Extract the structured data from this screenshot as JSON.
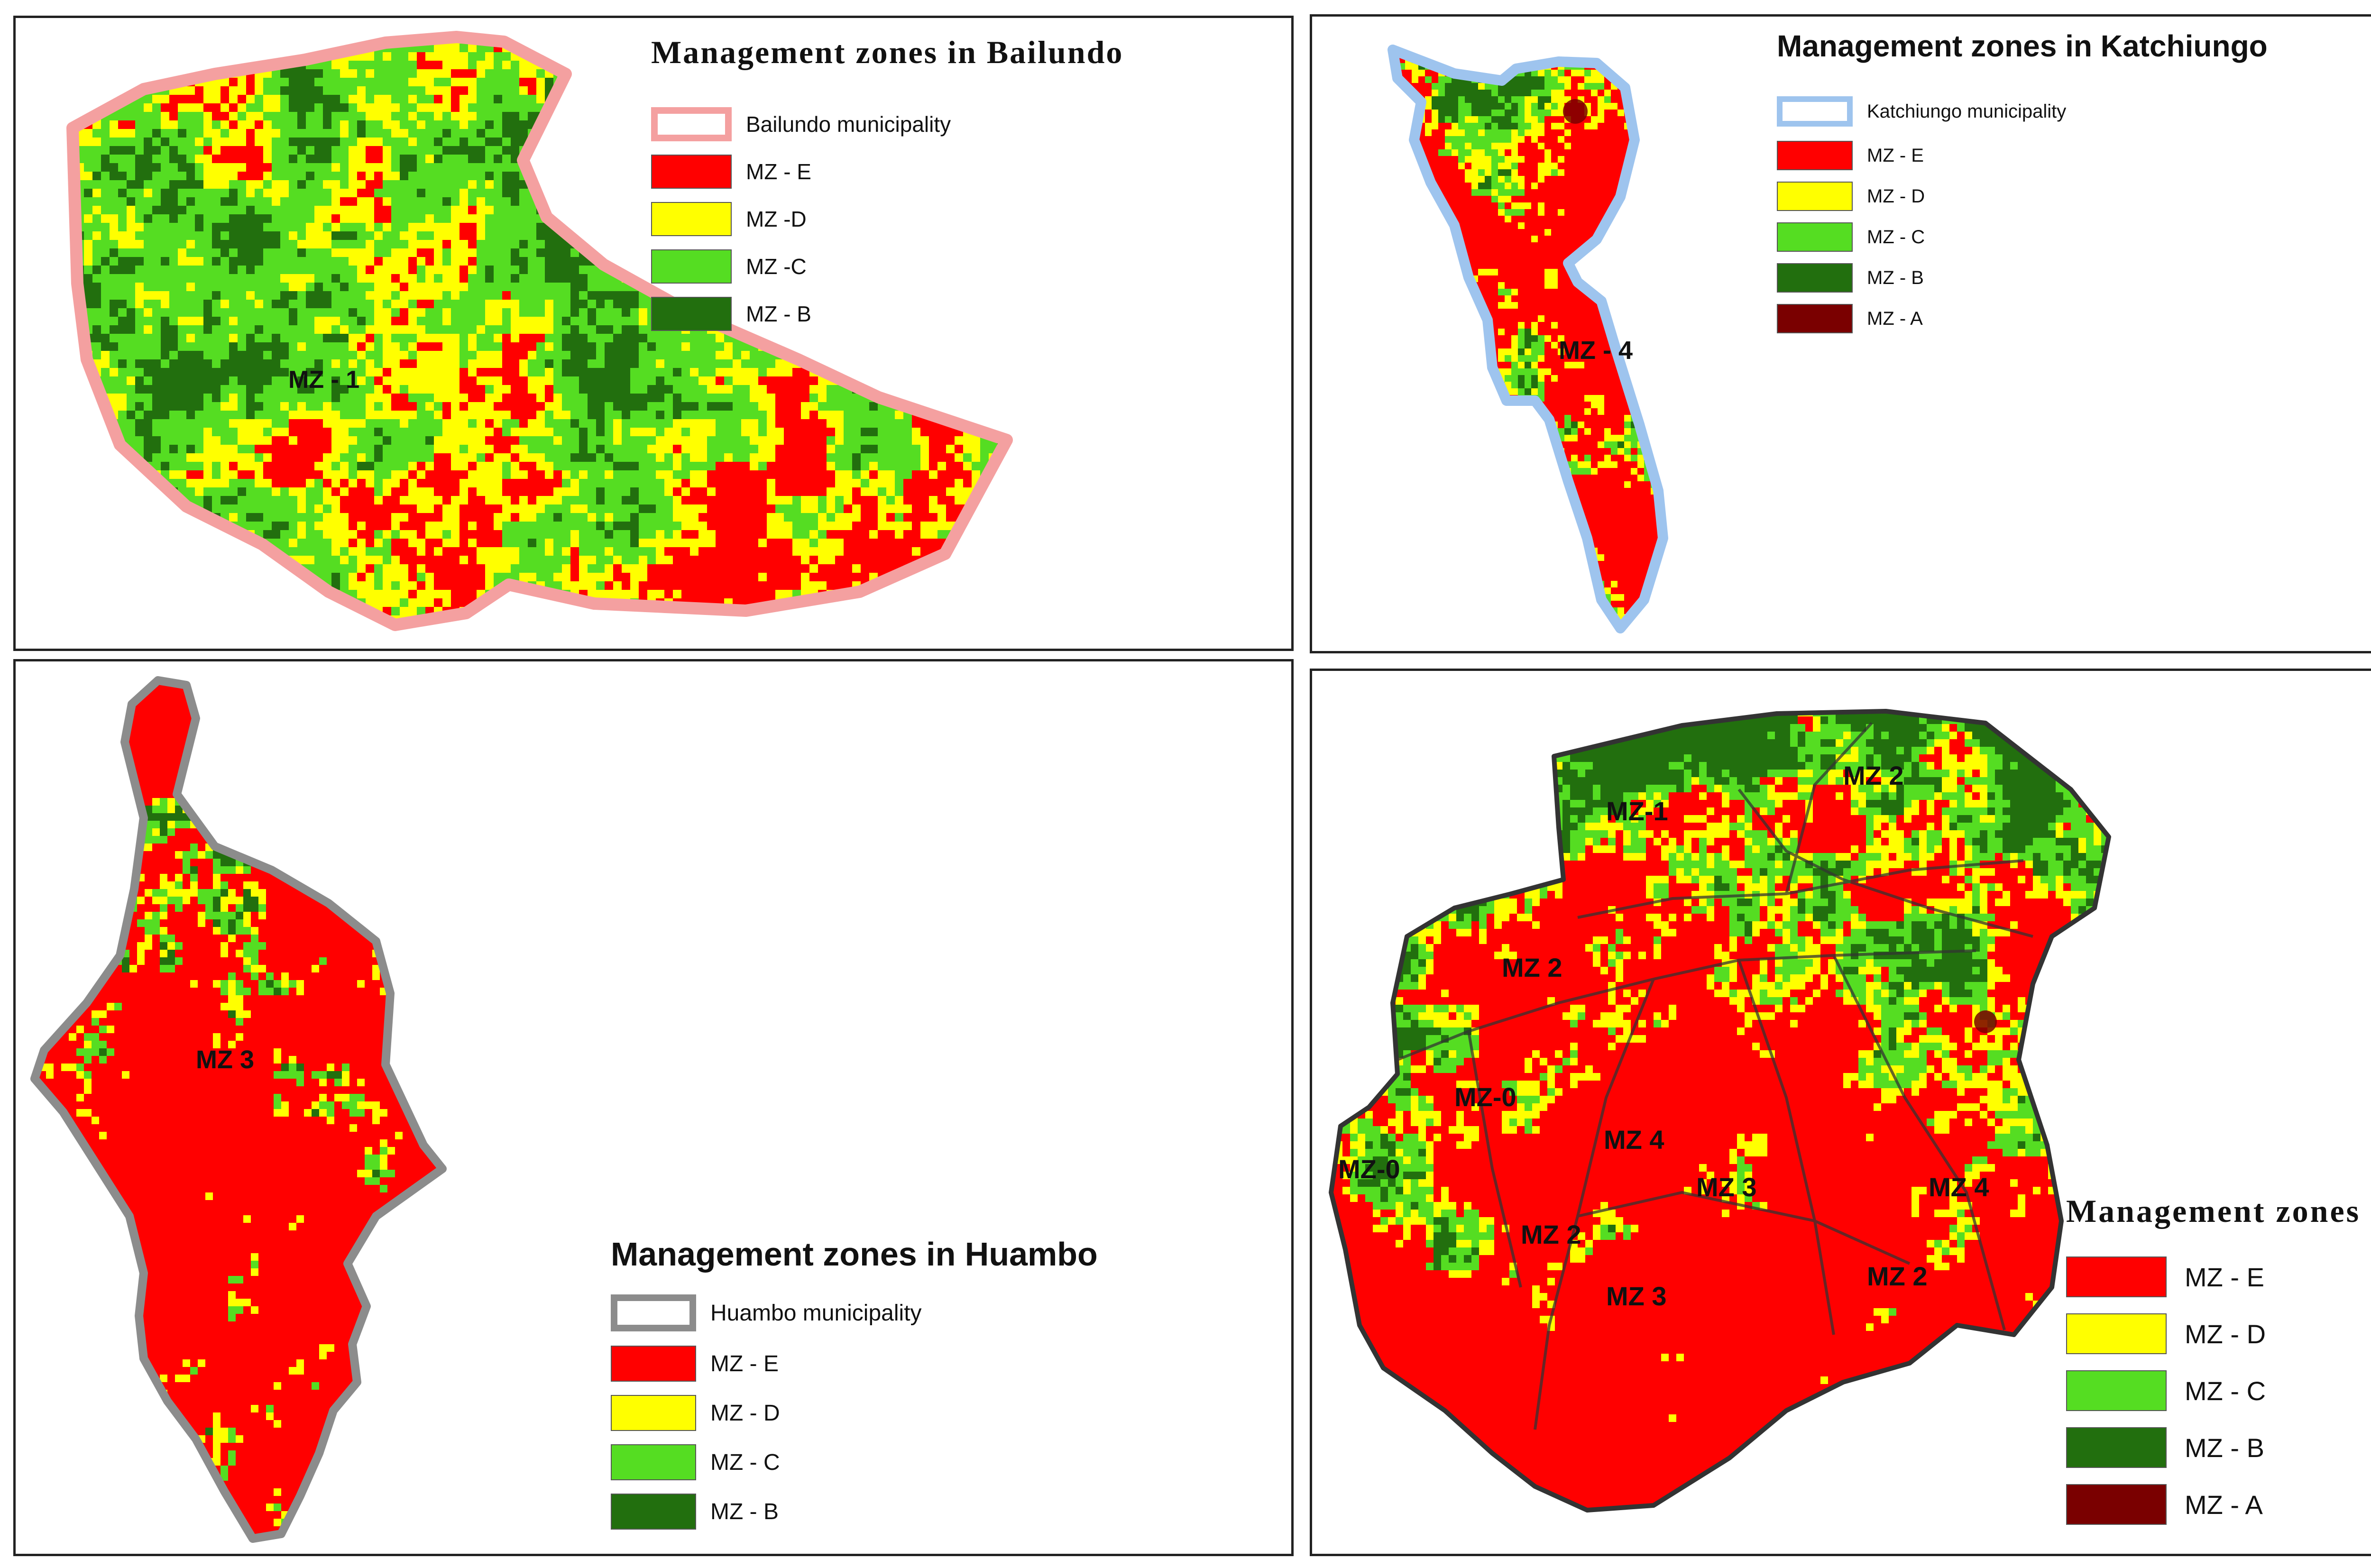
{
  "colors": {
    "mz_e": "#ff0000",
    "mz_d": "#ffff00",
    "mz_c": "#55dd22",
    "mz_b": "#226f0e",
    "mz_a": "#7a0000",
    "outline_bailundo": "#f4a0a0",
    "outline_katchiungo": "#9ec4ee",
    "outline_huambo": "#8c8c8c",
    "outline_huambo_dark": "#333333"
  },
  "bailundo": {
    "title": "Management zones in Bailundo",
    "municipality": "Bailundo municipality",
    "classes": [
      "MZ - E",
      "MZ -D",
      "MZ -C",
      "MZ - B"
    ],
    "zone_labels": [
      "MZ - 1"
    ]
  },
  "katchiungo": {
    "title": "Management zones in Katchiungo",
    "municipality": "Katchiungo municipality",
    "classes": [
      "MZ - E",
      "MZ - D",
      "MZ - C",
      "MZ - B",
      "MZ - A"
    ],
    "zone_labels": [
      "MZ - 4"
    ]
  },
  "huambo": {
    "title": "Management zones in Huambo",
    "municipality": "Huambo municipality",
    "classes": [
      "MZ - E",
      "MZ - D",
      "MZ - C",
      "MZ - B"
    ],
    "zone_labels": [
      "MZ 3"
    ]
  },
  "zones": {
    "title": "Management zones",
    "classes": [
      "MZ - E",
      "MZ - D",
      "MZ - C",
      "MZ - B",
      "MZ - A"
    ],
    "zone_labels": [
      "MZ-1",
      "MZ 2",
      "MZ 2",
      "MZ-0",
      "MZ-0",
      "MZ 4",
      "MZ 3",
      "MZ 4",
      "MZ 2",
      "MZ 2",
      "MZ 3"
    ]
  }
}
